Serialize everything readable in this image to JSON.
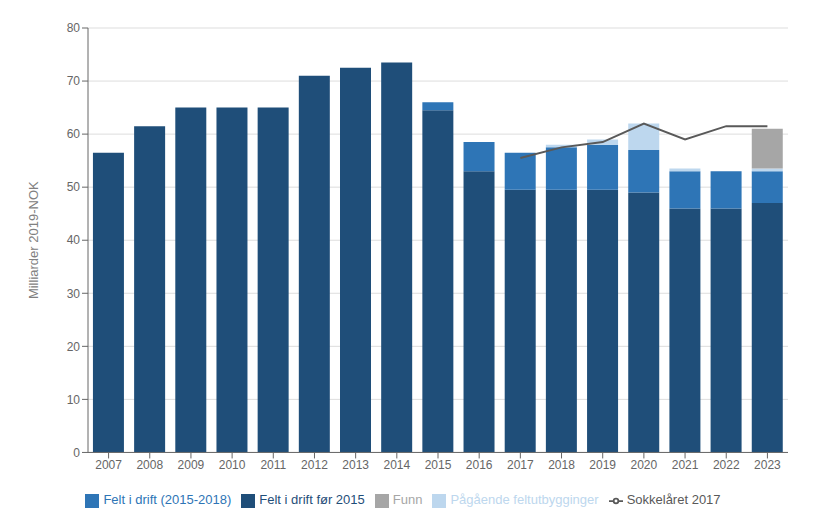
{
  "chart_data": {
    "type": "bar",
    "stacked": true,
    "ylabel": "Milliarder 2019-NOK",
    "categories": [
      "2007",
      "2008",
      "2009",
      "2010",
      "2011",
      "2012",
      "2013",
      "2014",
      "2015",
      "2016",
      "2017",
      "2018",
      "2019",
      "2020",
      "2021",
      "2022",
      "2023"
    ],
    "series": [
      {
        "name": "Felt i drift før 2015",
        "type": "bar",
        "color": "#1F4E79",
        "values": [
          56.5,
          61.5,
          65.0,
          65.0,
          65.0,
          71.0,
          72.5,
          73.5,
          64.5,
          53.0,
          49.5,
          49.5,
          49.5,
          49.0,
          46.0,
          46.0,
          47.0
        ]
      },
      {
        "name": "Felt i drift (2015-2018)",
        "type": "bar",
        "color": "#2E75B6",
        "values": [
          0,
          0,
          0,
          0,
          0,
          0,
          0,
          0,
          1.5,
          5.5,
          7.0,
          8.0,
          8.5,
          8.0,
          7.0,
          7.0,
          6.0
        ]
      },
      {
        "name": "Pågående feltutbygginger",
        "type": "bar",
        "color": "#BDD7EE",
        "values": [
          0,
          0,
          0,
          0,
          0,
          0,
          0,
          0,
          0,
          0,
          0,
          0.5,
          1.0,
          5.0,
          0.5,
          0.0,
          0.5
        ]
      },
      {
        "name": "Funn",
        "type": "bar",
        "color": "#A6A6A6",
        "values": [
          0,
          0,
          0,
          0,
          0,
          0,
          0,
          0,
          0,
          0,
          0,
          0,
          0,
          0,
          0,
          0,
          7.5
        ]
      },
      {
        "name": "Sokkelåret 2017",
        "type": "line",
        "color": "#595959",
        "values": [
          null,
          null,
          null,
          null,
          null,
          null,
          null,
          null,
          null,
          null,
          55.5,
          57.5,
          58.5,
          62.0,
          59.0,
          61.5,
          61.5
        ]
      }
    ],
    "ylim": [
      0,
      80
    ],
    "yticks": [
      0,
      10,
      20,
      30,
      40,
      50,
      60,
      70,
      80
    ],
    "grid": true,
    "legend": "bottom"
  }
}
